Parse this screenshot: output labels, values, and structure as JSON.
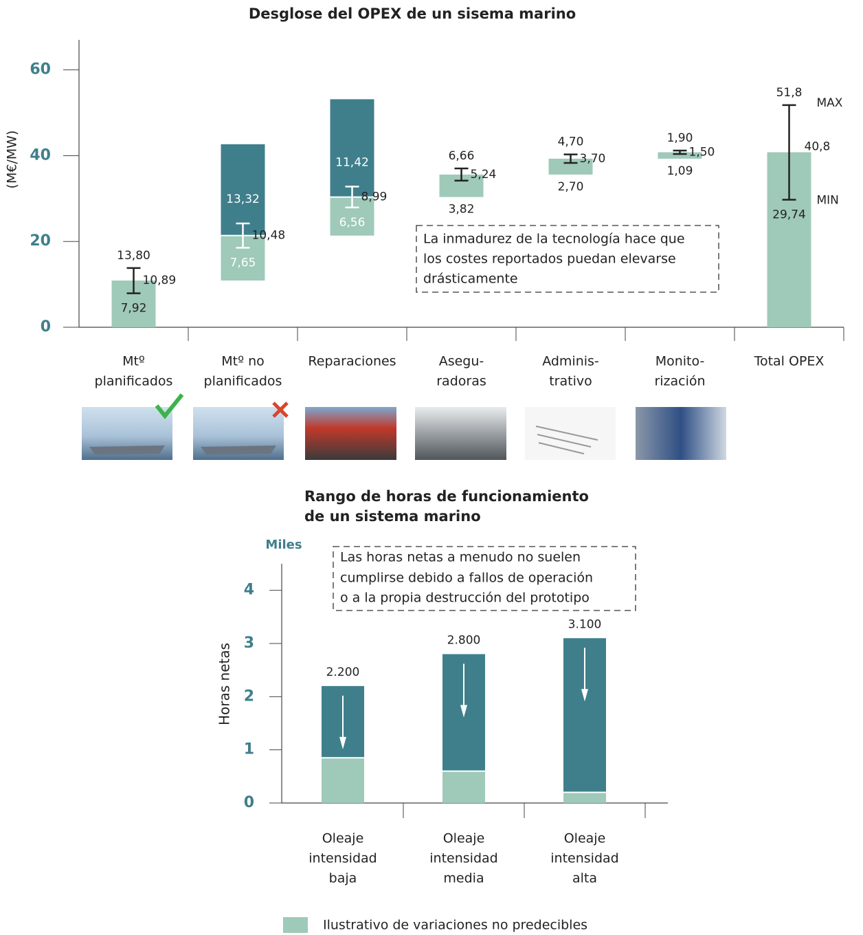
{
  "chart_data": [
    {
      "type": "waterfall",
      "title": "Desglose del OPEX de un sisema marino",
      "y_label": "(M€/MW)",
      "categories": [
        [
          "Mtº",
          "planificados"
        ],
        [
          "Mtº no",
          "planificados"
        ],
        [
          "Reparaciones"
        ],
        [
          "Asegu-",
          "radoras"
        ],
        [
          "Adminis-",
          "trativo"
        ],
        [
          "Monito-",
          "rización"
        ],
        [
          "Total OPEX"
        ]
      ],
      "values": [
        10.89,
        10.48,
        8.99,
        5.24,
        3.7,
        1.5,
        40.8
      ],
      "value_labels": [
        "10,89",
        "10,48",
        "8,99",
        "5,24",
        "3,70",
        "1,50",
        "40,8"
      ],
      "min": [
        7.92,
        7.65,
        6.56,
        3.82,
        2.7,
        1.09,
        29.74
      ],
      "min_labels": [
        "7,92",
        "7,65",
        "6,56",
        "3,82",
        "2,70",
        "1,09",
        "29,74"
      ],
      "max": [
        13.8,
        13.32,
        11.42,
        6.66,
        4.7,
        1.9,
        51.8
      ],
      "max_labels": [
        "13,80",
        "13,32",
        "11,42",
        "6,66",
        "4,70",
        "1,90",
        "51,8"
      ],
      "extra": [
        null,
        21.3,
        22.8,
        null,
        null,
        null,
        null
      ],
      "color": "#9fc9b9",
      "extra_color": "#3f7f8b",
      "min_text": "MIN",
      "max_text": "MAX",
      "annotation": [
        "La inmadurez de la tecnología hace que",
        "los costes reportados puedan elevarse",
        "drásticamente"
      ],
      "ylim": [
        0,
        67
      ],
      "yticks": [
        0,
        20,
        40,
        60
      ]
    },
    {
      "type": "stacked_bar",
      "title": [
        "Rango de horas de funcionamiento",
        "de un sistema marino"
      ],
      "y_unit": "Miles",
      "y_label": "Horas netas",
      "categories": [
        [
          "Oleaje",
          "intensidad",
          "baja"
        ],
        [
          "Oleaje",
          "intensidad",
          "media"
        ],
        [
          "Oleaje",
          "intensidad",
          "alta"
        ]
      ],
      "series": [
        {
          "name": "Ilustrativo de variaciones no predecibles",
          "color": "#9fc9b9",
          "values": [
            0.85,
            0.6,
            0.2
          ]
        },
        {
          "color": "#3f7f8b",
          "values": [
            1.35,
            2.2,
            2.9
          ]
        }
      ],
      "totals": [
        2.2,
        2.8,
        3.1
      ],
      "total_labels": [
        "2.200",
        "2.800",
        "3.100"
      ],
      "annotation": [
        "Las horas netas a menudo no suelen",
        "cumplirse debido a fallos de operación",
        "o a la propia destrucción del prototipo"
      ],
      "ylim": [
        0,
        4.5
      ],
      "yticks": [
        0,
        1,
        2,
        3,
        4
      ]
    }
  ]
}
